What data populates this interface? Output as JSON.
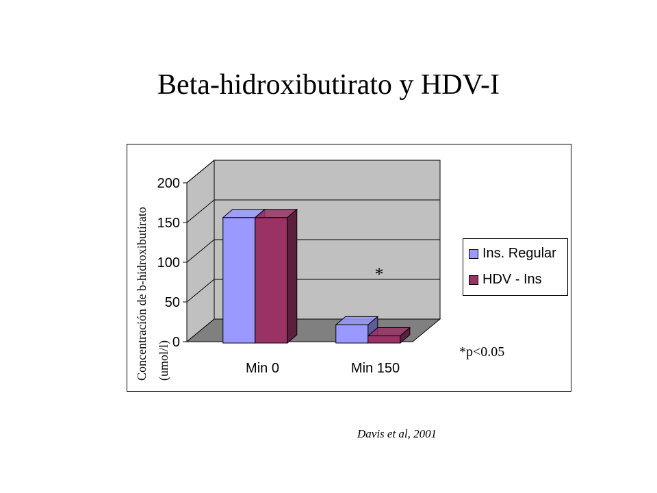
{
  "slide": {
    "title": "Beta-hidroxibutirato y HDV-I"
  },
  "chart_data": {
    "type": "bar",
    "categories": [
      "Min 0",
      "Min 150"
    ],
    "series": [
      {
        "name": "Ins. Regular",
        "values": [
          158,
          23
        ],
        "color": "#9999ff"
      },
      {
        "name": "HDV - Ins",
        "values": [
          158,
          9
        ],
        "color": "#993366"
      }
    ],
    "ylabel": [
      "Concentración de b-hidroxibutirato",
      "(umol/l)"
    ],
    "yticks": [
      0,
      50,
      100,
      150,
      200
    ],
    "ylim": [
      0,
      200
    ],
    "annotation": "*",
    "grid": true,
    "legend_position": "right"
  },
  "note": "*p<0.05",
  "citation": "Davis et al, 2001",
  "colors": {
    "wall": "#c0c0c0",
    "floor": "#808080"
  }
}
